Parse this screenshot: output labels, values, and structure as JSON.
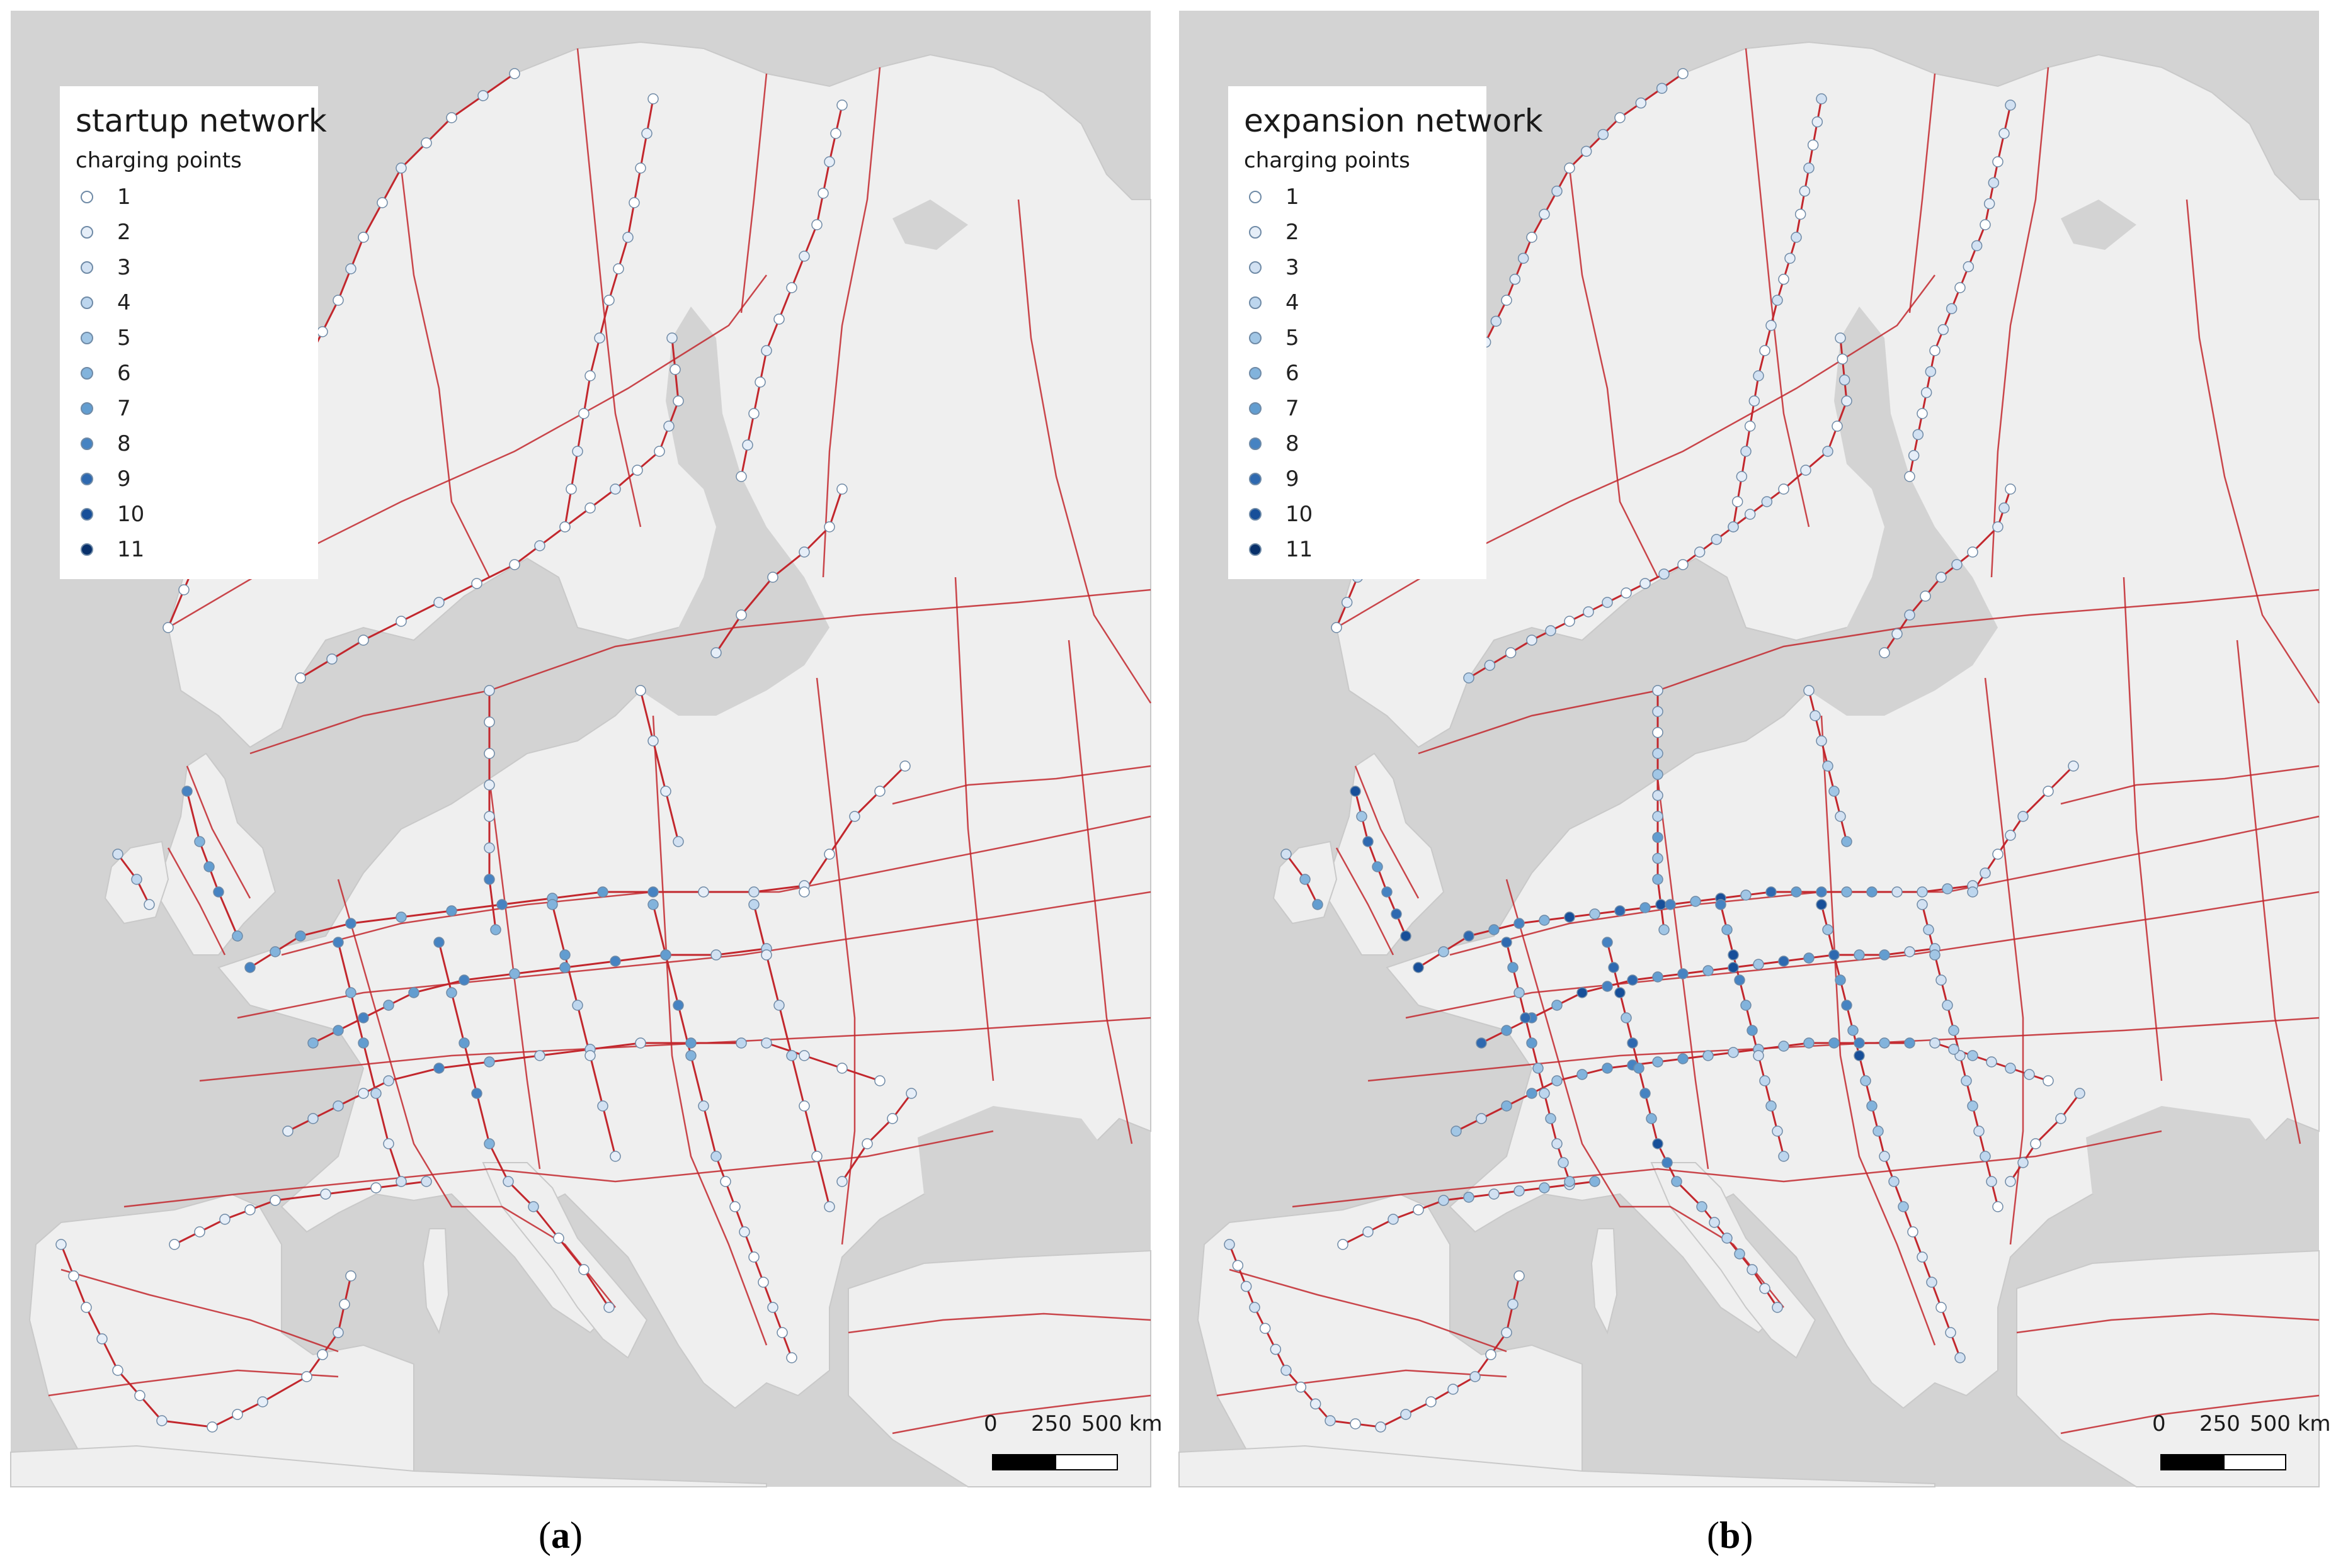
{
  "panels": [
    {
      "id": "a",
      "legend_title": "startup network",
      "panel_label": "a",
      "intensity": "startup"
    },
    {
      "id": "b",
      "legend_title": "expansion network",
      "panel_label": "b",
      "intensity": "expansion"
    }
  ],
  "legend": {
    "subtitle": "charging points",
    "classes": [
      {
        "label": "1",
        "color": "#ffffff"
      },
      {
        "label": "2",
        "color": "#e6eef8"
      },
      {
        "label": "3",
        "color": "#d2e1f2"
      },
      {
        "label": "4",
        "color": "#bdd6ee"
      },
      {
        "label": "5",
        "color": "#a1c6e5"
      },
      {
        "label": "6",
        "color": "#82b3dc"
      },
      {
        "label": "7",
        "color": "#629dd0"
      },
      {
        "label": "8",
        "color": "#4683c2"
      },
      {
        "label": "9",
        "color": "#2e69b0"
      },
      {
        "label": "10",
        "color": "#174f99"
      },
      {
        "label": "11",
        "color": "#08306b"
      }
    ]
  },
  "scale": {
    "ticks": [
      "0",
      "250",
      "500 km"
    ]
  },
  "colors": {
    "sea": "#d3d3d3",
    "land": "#efefef",
    "road": "#c2272d",
    "marker_stroke": "#6f8aa6"
  }
}
